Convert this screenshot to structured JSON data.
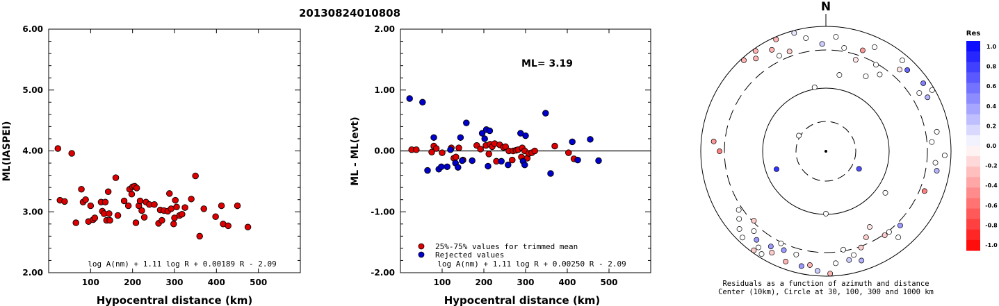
{
  "header": {
    "title": "20130824010808"
  },
  "chart_data": [
    {
      "type": "scatter",
      "xlabel": "Hypocentral distance (km)",
      "ylabel": "ML(IASPEI)",
      "xlim": [
        0,
        600
      ],
      "ylim": [
        2.0,
        6.0
      ],
      "xticks": [
        "100",
        "200",
        "300",
        "400",
        "500"
      ],
      "yticks": [
        "2.00",
        "3.00",
        "4.00",
        "5.00",
        "6.00"
      ],
      "formula": "log A(nm) + 1.11 log R + 0.00189 R - 2.09",
      "series": [
        {
          "color": "#dd0000",
          "points": [
            [
              22,
              4.04
            ],
            [
              27,
              3.19
            ],
            [
              38,
              3.17
            ],
            [
              55,
              3.96
            ],
            [
              65,
              2.82
            ],
            [
              78,
              3.37
            ],
            [
              82,
              3.16
            ],
            [
              88,
              3.2
            ],
            [
              95,
              2.84
            ],
            [
              100,
              3.1
            ],
            [
              106,
              2.87
            ],
            [
              110,
              2.9
            ],
            [
              125,
              3.16
            ],
            [
              128,
              3.01
            ],
            [
              132,
              2.97
            ],
            [
              135,
              3.16
            ],
            [
              138,
              2.86
            ],
            [
              142,
              3.33
            ],
            [
              144,
              2.97
            ],
            [
              146,
              2.86
            ],
            [
              160,
              3.56
            ],
            [
              165,
              2.94
            ],
            [
              180,
              3.18
            ],
            [
              190,
              3.1
            ],
            [
              193,
              3.37
            ],
            [
              198,
              3.29
            ],
            [
              200,
              3.41
            ],
            [
              205,
              3.42
            ],
            [
              208,
              2.82
            ],
            [
              210,
              3.39
            ],
            [
              215,
              3.1
            ],
            [
              218,
              3.18
            ],
            [
              222,
              3.02
            ],
            [
              228,
              2.91
            ],
            [
              232,
              3.16
            ],
            [
              240,
              3.12
            ],
            [
              252,
              3.12
            ],
            [
              262,
              2.81
            ],
            [
              266,
              3.03
            ],
            [
              270,
              2.86
            ],
            [
              275,
              3.02
            ],
            [
              284,
              3.01
            ],
            [
              288,
              3.3
            ],
            [
              292,
              3.05
            ],
            [
              298,
              2.8
            ],
            [
              300,
              2.9
            ],
            [
              302,
              3.19
            ],
            [
              305,
              3.08
            ],
            [
              312,
              2.94
            ],
            [
              318,
              2.96
            ],
            [
              325,
              3.07
            ],
            [
              340,
              3.21
            ],
            [
              350,
              3.59
            ],
            [
              360,
              2.6
            ],
            [
              370,
              3.05
            ],
            [
              398,
              2.92
            ],
            [
              412,
              3.1
            ],
            [
              416,
              2.8
            ],
            [
              428,
              2.77
            ],
            [
              450,
              3.1
            ],
            [
              475,
              2.75
            ]
          ]
        }
      ]
    },
    {
      "type": "scatter",
      "xlabel": "Hypocentral distance (km)",
      "ylabel": "ML - ML(evt)",
      "xlim": [
        0,
        600
      ],
      "ylim": [
        -2.0,
        2.0
      ],
      "xticks": [
        "100",
        "200",
        "300",
        "400",
        "500"
      ],
      "yticks": [
        "-2.00",
        "-1.00",
        "0.00",
        "1.00",
        "2.00"
      ],
      "annotation": "ML= 3.19",
      "formula": "log A(nm) + 1.11 log R + 0.00250 R - 2.09",
      "series": [
        {
          "name": "25%-75% values for trimmed mean",
          "color": "#dd0000",
          "points": [
            [
              27,
              0.02
            ],
            [
              38,
              0.02
            ],
            [
              75,
              -0.02
            ],
            [
              80,
              0.08
            ],
            [
              86,
              0.04
            ],
            [
              100,
              -0.03
            ],
            [
              122,
              0.05
            ],
            [
              128,
              -0.12
            ],
            [
              133,
              -0.1
            ],
            [
              140,
              0.05
            ],
            [
              150,
              -0.15
            ],
            [
              183,
              0.09
            ],
            [
              192,
              0.03
            ],
            [
              205,
              0.09
            ],
            [
              212,
              -0.05
            ],
            [
              215,
              0.11
            ],
            [
              220,
              0.07
            ],
            [
              226,
              0.12
            ],
            [
              230,
              -0.17
            ],
            [
              238,
              0.1
            ],
            [
              247,
              0.06
            ],
            [
              252,
              0.07
            ],
            [
              260,
              0.0
            ],
            [
              268,
              -0.15
            ],
            [
              270,
              0.0
            ],
            [
              277,
              0.01
            ],
            [
              282,
              0.02
            ],
            [
              290,
              -0.1
            ],
            [
              292,
              0.05
            ],
            [
              298,
              0.0
            ],
            [
              304,
              -0.12
            ],
            [
              308,
              -0.04
            ],
            [
              315,
              -0.03
            ],
            [
              322,
              0.0
            ],
            [
              370,
              0.08
            ],
            [
              403,
              -0.03
            ],
            [
              416,
              -0.13
            ]
          ]
        },
        {
          "name": "Rejected values",
          "color": "#0000cc",
          "points": [
            [
              22,
              0.86
            ],
            [
              53,
              0.8
            ],
            [
              65,
              -0.32
            ],
            [
              80,
              0.22
            ],
            [
              92,
              -0.3
            ],
            [
              98,
              -0.26
            ],
            [
              112,
              -0.26
            ],
            [
              120,
              0.02
            ],
            [
              132,
              -0.2
            ],
            [
              138,
              -0.27
            ],
            [
              144,
              0.22
            ],
            [
              148,
              -0.16
            ],
            [
              158,
              0.46
            ],
            [
              172,
              -0.16
            ],
            [
              196,
              0.29
            ],
            [
              202,
              0.2
            ],
            [
              206,
              0.35
            ],
            [
              210,
              -0.25
            ],
            [
              214,
              0.33
            ],
            [
              242,
              -0.17
            ],
            [
              258,
              -0.23
            ],
            [
              288,
              0.29
            ],
            [
              294,
              -0.17
            ],
            [
              298,
              -0.23
            ],
            [
              300,
              0.25
            ],
            [
              348,
              0.62
            ],
            [
              360,
              -0.37
            ],
            [
              412,
              0.15
            ],
            [
              425,
              -0.15
            ],
            [
              455,
              0.19
            ],
            [
              475,
              -0.16
            ]
          ]
        }
      ]
    }
  ],
  "map": {
    "north_label": "N",
    "caption_line1": "Residuals as a function of azimuth and distance",
    "caption_line2": "Center (10km), Circle at 30, 100, 300 and 1000 km"
  },
  "colorbar": {
    "title": "Res",
    "labels": [
      "1.0",
      "0.8",
      "0.6",
      "0.4",
      "0.2",
      "0.0",
      "-0.2",
      "-0.4",
      "-0.6",
      "-0.8",
      "-1.0"
    ]
  },
  "stations": [
    {
      "az": 350,
      "r": 0.52,
      "res": 0.0
    },
    {
      "az": 5,
      "r": 0.92,
      "res": 0.0
    },
    {
      "az": 358,
      "r": 0.86,
      "res": 0.2
    },
    {
      "az": 10,
      "r": 0.84,
      "res": 0.0
    },
    {
      "az": 20,
      "r": 0.86,
      "res": -0.4
    },
    {
      "az": 25,
      "r": 0.92,
      "res": 0.0
    },
    {
      "az": 18,
      "r": 0.77,
      "res": -0.1
    },
    {
      "az": 30,
      "r": 0.8,
      "res": 0.0
    },
    {
      "az": 35,
      "r": 0.75,
      "res": 0.0
    },
    {
      "az": 28,
      "r": 0.68,
      "res": 0.0
    },
    {
      "az": 42,
      "r": 0.88,
      "res": -0.1
    },
    {
      "az": 40,
      "r": 0.95,
      "res": 0.0
    },
    {
      "az": 45,
      "r": 0.92,
      "res": 0.6
    },
    {
      "az": 350,
      "r": 0.92,
      "res": 0.0
    },
    {
      "az": 345,
      "r": 0.98,
      "res": 0.1
    },
    {
      "az": 340,
      "r": 0.85,
      "res": -0.2
    },
    {
      "az": 332,
      "r": 0.92,
      "res": -0.3
    },
    {
      "az": 336,
      "r": 0.98,
      "res": -0.3
    },
    {
      "az": 334,
      "r": 0.85,
      "res": 0.0
    },
    {
      "az": 325,
      "r": 0.98,
      "res": -0.3
    },
    {
      "az": 318,
      "r": 0.98,
      "res": -0.3
    },
    {
      "az": 323,
      "r": 0.93,
      "res": -0.3
    },
    {
      "az": 10,
      "r": 0.62,
      "res": 0.0
    },
    {
      "az": 55,
      "r": 0.95,
      "res": 0.5
    },
    {
      "az": 60,
      "r": 0.98,
      "res": 0.0
    },
    {
      "az": 58,
      "r": 0.88,
      "res": 0.0
    },
    {
      "az": 62,
      "r": 0.92,
      "res": 0.3
    },
    {
      "az": 80,
      "r": 0.9,
      "res": 0.0
    },
    {
      "az": 85,
      "r": 0.85,
      "res": 0.0
    },
    {
      "az": 92,
      "r": 0.95,
      "res": 0.0
    },
    {
      "az": 100,
      "r": 0.9,
      "res": 0.3
    },
    {
      "az": 112,
      "r": 0.85,
      "res": -0.5
    },
    {
      "az": 96,
      "r": 0.88,
      "res": 0.0
    },
    {
      "az": 300,
      "r": 0.25,
      "res": 0.0
    },
    {
      "az": 250,
      "r": 0.42,
      "res": 0.8
    },
    {
      "az": 118,
      "r": 0.3,
      "res": 0.7
    },
    {
      "az": 125,
      "r": 0.58,
      "res": 0.0
    },
    {
      "az": 180,
      "r": 0.5,
      "res": 0.0
    },
    {
      "az": 270,
      "r": 0.85,
      "res": -0.5
    },
    {
      "az": 275,
      "r": 0.9,
      "res": -0.4
    },
    {
      "az": 150,
      "r": 0.7,
      "res": -0.1
    },
    {
      "az": 155,
      "r": 0.76,
      "res": -0.2
    },
    {
      "az": 160,
      "r": 0.82,
      "res": -0.2
    },
    {
      "az": 162,
      "r": 0.92,
      "res": 0.3
    },
    {
      "az": 165,
      "r": 0.86,
      "res": 0.0
    },
    {
      "az": 168,
      "r": 0.89,
      "res": 0.2
    },
    {
      "az": 170,
      "r": 0.8,
      "res": 0.0
    },
    {
      "az": 175,
      "r": 0.9,
      "res": 0.0
    },
    {
      "az": 178,
      "r": 0.98,
      "res": -0.3
    },
    {
      "az": 184,
      "r": 0.96,
      "res": 0.2
    },
    {
      "az": 188,
      "r": 0.92,
      "res": -0.3
    },
    {
      "az": 192,
      "r": 0.94,
      "res": 0.4
    },
    {
      "az": 196,
      "r": 0.86,
      "res": 0.0
    },
    {
      "az": 200,
      "r": 0.94,
      "res": -0.3
    },
    {
      "az": 203,
      "r": 0.86,
      "res": 0.4
    },
    {
      "az": 206,
      "r": 0.82,
      "res": 0.0
    },
    {
      "az": 208,
      "r": 0.92,
      "res": -0.2
    },
    {
      "az": 210,
      "r": 0.88,
      "res": 0.4
    },
    {
      "az": 212,
      "r": 0.97,
      "res": 0.0
    },
    {
      "az": 215,
      "r": 0.94,
      "res": 0.0
    },
    {
      "az": 218,
      "r": 0.9,
      "res": 0.4
    },
    {
      "az": 222,
      "r": 0.86,
      "res": 0.0
    },
    {
      "az": 226,
      "r": 0.8,
      "res": -0.2
    },
    {
      "az": 145,
      "r": 0.82,
      "res": -0.2
    },
    {
      "az": 140,
      "r": 0.9,
      "res": 0.0
    },
    {
      "az": 142,
      "r": 0.82,
      "res": 0.0
    },
    {
      "az": 135,
      "r": 0.84,
      "res": 0.4
    },
    {
      "az": 228,
      "r": 0.93,
      "res": 0.0
    },
    {
      "az": 232,
      "r": 0.88,
      "res": 0.0
    },
    {
      "az": 236,
      "r": 0.84,
      "res": 0.0
    },
    {
      "az": 224,
      "r": 0.96,
      "res": 0.0
    },
    {
      "az": 216,
      "r": 0.98,
      "res": -0.2
    }
  ]
}
